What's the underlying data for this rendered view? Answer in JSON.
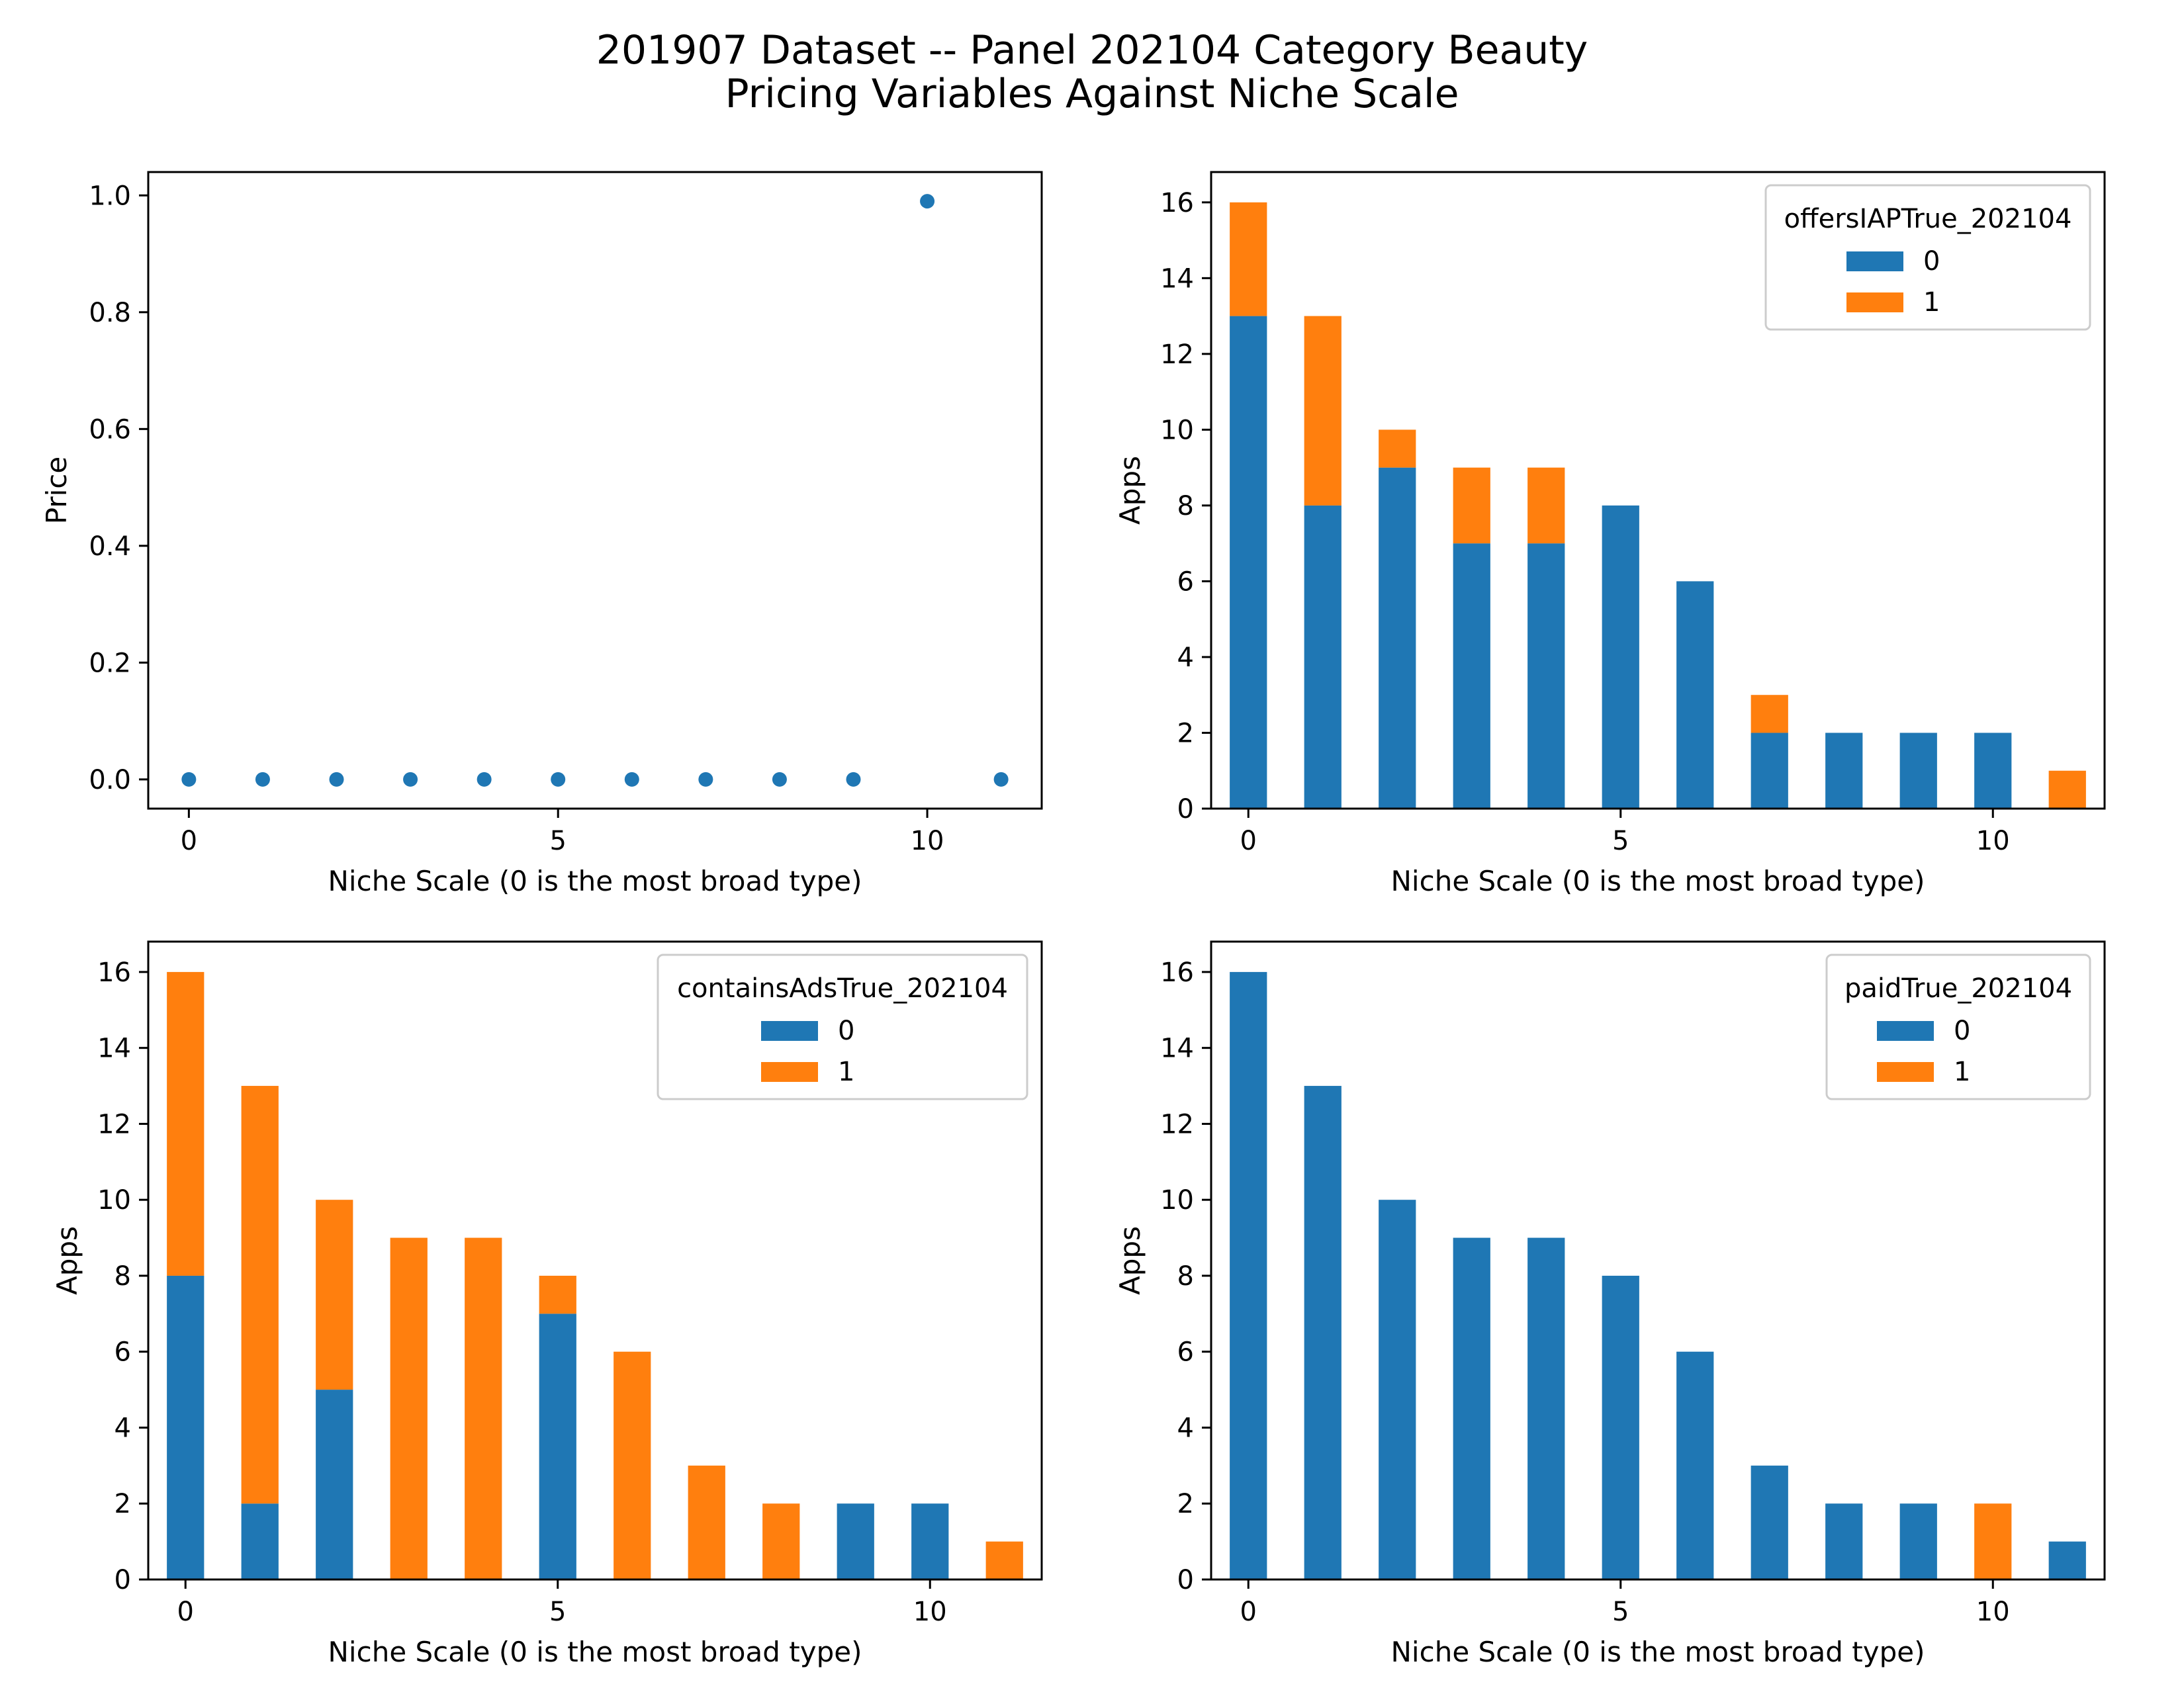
{
  "figure": {
    "title_line1": "201907 Dataset -- Panel 202104 Category Beauty",
    "title_line2": "Pricing Variables Against Niche Scale"
  },
  "colors": {
    "series_0": "#1f77b4",
    "series_1": "#ff7f0e",
    "scatter": "#1f77b4"
  },
  "chart_data": [
    {
      "type": "scatter",
      "xlabel": "Niche Scale (0 is the most broad type)",
      "ylabel": "Price",
      "x": [
        0,
        1,
        2,
        3,
        4,
        5,
        6,
        7,
        8,
        9,
        10,
        11
      ],
      "y": [
        0,
        0,
        0,
        0,
        0,
        0,
        0,
        0,
        0,
        0,
        0.99,
        0
      ],
      "xlim": [
        -0.55,
        11.55
      ],
      "ylim": [
        -0.05,
        1.04
      ],
      "xticks": [
        0,
        5,
        10
      ],
      "yticks": [
        0.0,
        0.2,
        0.4,
        0.6,
        0.8,
        1.0
      ],
      "ytick_labels": [
        "0.0",
        "0.2",
        "0.4",
        "0.6",
        "0.8",
        "1.0"
      ],
      "grid": false
    },
    {
      "type": "bar",
      "stacked": true,
      "xlabel": "Niche Scale (0 is the most broad type)",
      "ylabel": "Apps",
      "categories": [
        0,
        1,
        2,
        3,
        4,
        5,
        6,
        7,
        8,
        9,
        10,
        11
      ],
      "legend_title": "offersIAPTrue_202104",
      "legend_position": "top-right",
      "series": [
        {
          "name": "0",
          "values": [
            13,
            8,
            9,
            7,
            7,
            8,
            6,
            2,
            2,
            2,
            2,
            0
          ]
        },
        {
          "name": "1",
          "values": [
            3,
            5,
            1,
            2,
            2,
            0,
            0,
            1,
            0,
            0,
            0,
            1
          ]
        }
      ],
      "xticks": [
        0,
        5,
        10
      ],
      "ylim": [
        0,
        16.8
      ],
      "yticks": [
        0,
        2,
        4,
        6,
        8,
        10,
        12,
        14,
        16
      ],
      "grid": false
    },
    {
      "type": "bar",
      "stacked": true,
      "xlabel": "Niche Scale (0 is the most broad type)",
      "ylabel": "Apps",
      "categories": [
        0,
        1,
        2,
        3,
        4,
        5,
        6,
        7,
        8,
        9,
        10,
        11
      ],
      "legend_title": "containsAdsTrue_202104",
      "legend_position": "top-right",
      "series": [
        {
          "name": "0",
          "values": [
            8,
            2,
            5,
            0,
            0,
            7,
            0,
            0,
            0,
            2,
            2,
            0
          ]
        },
        {
          "name": "1",
          "values": [
            8,
            11,
            5,
            9,
            9,
            1,
            6,
            3,
            2,
            0,
            0,
            1
          ]
        }
      ],
      "xticks": [
        0,
        5,
        10
      ],
      "ylim": [
        0,
        16.8
      ],
      "yticks": [
        0,
        2,
        4,
        6,
        8,
        10,
        12,
        14,
        16
      ],
      "grid": false
    },
    {
      "type": "bar",
      "stacked": true,
      "xlabel": "Niche Scale (0 is the most broad type)",
      "ylabel": "Apps",
      "categories": [
        0,
        1,
        2,
        3,
        4,
        5,
        6,
        7,
        8,
        9,
        10,
        11
      ],
      "legend_title": "paidTrue_202104",
      "legend_position": "top-right",
      "series": [
        {
          "name": "0",
          "values": [
            16,
            13,
            10,
            9,
            9,
            8,
            6,
            3,
            2,
            2,
            0,
            1
          ]
        },
        {
          "name": "1",
          "values": [
            0,
            0,
            0,
            0,
            0,
            0,
            0,
            0,
            0,
            0,
            2,
            0
          ]
        }
      ],
      "xticks": [
        0,
        5,
        10
      ],
      "ylim": [
        0,
        16.8
      ],
      "yticks": [
        0,
        2,
        4,
        6,
        8,
        10,
        12,
        14,
        16
      ],
      "grid": false
    }
  ]
}
